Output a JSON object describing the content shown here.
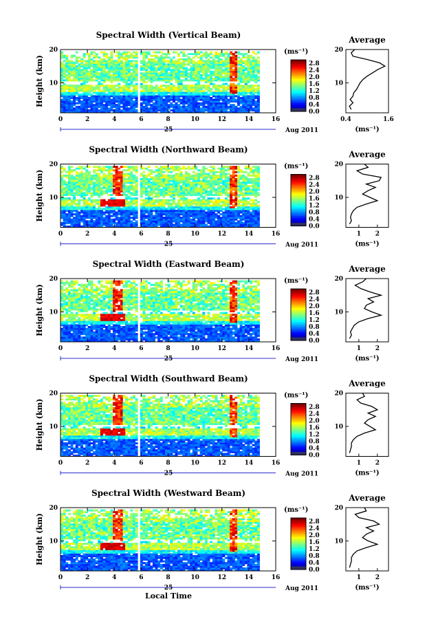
{
  "chart_data": [
    {
      "type": "heatmap",
      "title": "Spectral Width (Vertical Beam)",
      "xlabel": "",
      "ylabel": "Height (km)",
      "xlim": [
        0,
        16
      ],
      "ylim": [
        1,
        20
      ],
      "xticks": [
        "0",
        "2",
        "4",
        "6",
        "8",
        "10",
        "12",
        "14",
        "16"
      ],
      "yticks": [
        "10",
        "20"
      ],
      "date_day": "25",
      "date_month": "Aug 2011",
      "colorbar": {
        "unit": "(ms⁻¹)",
        "ticks": [
          "0.0",
          "0.4",
          "0.8",
          "1.2",
          "1.6",
          "2.0",
          "2.4",
          "2.8"
        ],
        "range": [
          0.0,
          3.0
        ]
      },
      "data_gap_hours": [
        5.7,
        6.0
      ],
      "average_profile": {
        "title": "Average",
        "xlabel": "(ms⁻¹)",
        "xticks": [
          "0.4",
          "1.6"
        ],
        "xlim": [
          0.4,
          1.6
        ],
        "height_km": [
          2,
          3,
          4,
          5,
          6,
          7,
          8,
          9,
          10,
          11,
          12,
          13,
          14,
          15,
          16,
          17,
          18,
          19,
          20
        ],
        "width_ms": [
          0.55,
          0.5,
          0.6,
          0.52,
          0.6,
          0.62,
          0.7,
          0.75,
          0.8,
          0.88,
          1.0,
          1.15,
          1.3,
          1.5,
          1.35,
          1.0,
          0.6,
          0.55,
          0.65
        ]
      }
    },
    {
      "type": "heatmap",
      "title": "Spectral Width (Northward Beam)",
      "xlabel": "",
      "ylabel": "Height (km)",
      "xlim": [
        0,
        16
      ],
      "ylim": [
        1,
        20
      ],
      "xticks": [
        "0",
        "2",
        "4",
        "6",
        "8",
        "10",
        "12",
        "14",
        "16"
      ],
      "yticks": [
        "10",
        "20"
      ],
      "date_day": "25",
      "date_month": "Aug 2011",
      "colorbar": {
        "unit": "(ms⁻¹)",
        "ticks": [
          "0.0",
          "0.4",
          "0.8",
          "1.2",
          "1.6",
          "2.0",
          "2.4",
          "2.8"
        ],
        "range": [
          0.0,
          3.0
        ]
      },
      "data_gap_hours": [
        5.7,
        6.0
      ],
      "average_profile": {
        "title": "Average",
        "xlabel": "(ms⁻¹)",
        "xticks": [
          "1",
          "2"
        ],
        "xlim": [
          0.3,
          2.6
        ],
        "height_km": [
          2,
          3,
          4,
          5,
          6,
          7,
          8,
          9,
          10,
          11,
          12,
          13,
          14,
          15,
          16,
          17,
          18,
          19,
          20
        ],
        "width_ms": [
          0.5,
          0.6,
          0.55,
          0.6,
          0.7,
          0.9,
          1.4,
          2.0,
          1.6,
          1.2,
          1.5,
          1.9,
          1.4,
          2.1,
          2.2,
          1.2,
          0.9,
          1.5,
          1.3
        ]
      }
    },
    {
      "type": "heatmap",
      "title": "Spectral Width (Eastward Beam)",
      "xlabel": "",
      "ylabel": "Height (km)",
      "xlim": [
        0,
        16
      ],
      "ylim": [
        1,
        20
      ],
      "xticks": [
        "0",
        "2",
        "4",
        "6",
        "8",
        "10",
        "12",
        "14",
        "16"
      ],
      "yticks": [
        "10",
        "20"
      ],
      "date_day": "25",
      "date_month": "Aug 2011",
      "colorbar": {
        "unit": "(ms⁻¹)",
        "ticks": [
          "0.0",
          "0.4",
          "0.8",
          "1.2",
          "1.6",
          "2.0",
          "2.4",
          "2.8"
        ],
        "range": [
          0.0,
          3.0
        ]
      },
      "data_gap_hours": [
        5.7,
        6.0
      ],
      "average_profile": {
        "title": "Average",
        "xlabel": "(ms⁻¹)",
        "xticks": [
          "1",
          "2"
        ],
        "xlim": [
          0.3,
          2.6
        ],
        "height_km": [
          2,
          3,
          4,
          5,
          6,
          7,
          8,
          9,
          10,
          11,
          12,
          13,
          14,
          15,
          16,
          17,
          18,
          19,
          20
        ],
        "width_ms": [
          0.5,
          0.6,
          0.55,
          0.65,
          0.75,
          1.0,
          1.5,
          2.2,
          1.7,
          1.3,
          1.4,
          1.8,
          1.5,
          2.2,
          1.6,
          1.1,
          0.8,
          1.2,
          1.4
        ]
      }
    },
    {
      "type": "heatmap",
      "title": "Spectral Width (Southward Beam)",
      "xlabel": "",
      "ylabel": "Height (km)",
      "xlim": [
        0,
        16
      ],
      "ylim": [
        1,
        20
      ],
      "xticks": [
        "0",
        "2",
        "4",
        "6",
        "8",
        "10",
        "12",
        "14",
        "16"
      ],
      "yticks": [
        "10",
        "20"
      ],
      "date_day": "25",
      "date_month": "Aug 2011",
      "colorbar": {
        "unit": "(ms⁻¹)",
        "ticks": [
          "0.0",
          "0.4",
          "0.8",
          "1.2",
          "1.6",
          "2.0",
          "2.4",
          "2.8"
        ],
        "range": [
          0.0,
          3.0
        ]
      },
      "data_gap_hours": [
        5.7,
        6.0
      ],
      "average_profile": {
        "title": "Average",
        "xlabel": "(ms⁻¹)",
        "xticks": [
          "1",
          "2"
        ],
        "xlim": [
          0.3,
          2.6
        ],
        "height_km": [
          2,
          3,
          4,
          5,
          6,
          7,
          8,
          9,
          10,
          11,
          12,
          13,
          14,
          15,
          16,
          17,
          18,
          19,
          20
        ],
        "width_ms": [
          0.5,
          0.55,
          0.6,
          0.6,
          0.7,
          0.9,
          1.3,
          1.9,
          1.6,
          1.3,
          1.5,
          1.9,
          1.5,
          2.0,
          1.7,
          1.1,
          0.9,
          1.3,
          1.2
        ]
      }
    },
    {
      "type": "heatmap",
      "title": "Spectral Width (Westward Beam)",
      "xlabel": "Local Time",
      "ylabel": "Height (km)",
      "xlim": [
        0,
        16
      ],
      "ylim": [
        1,
        20
      ],
      "xticks": [
        "0",
        "2",
        "4",
        "6",
        "8",
        "10",
        "12",
        "14",
        "16"
      ],
      "yticks": [
        "10",
        "20"
      ],
      "date_day": "25",
      "date_month": "Aug 2011",
      "colorbar": {
        "unit": "(ms⁻¹)",
        "ticks": [
          "0.0",
          "0.4",
          "0.8",
          "1.2",
          "1.6",
          "2.0",
          "2.4",
          "2.8"
        ],
        "range": [
          0.0,
          3.0
        ]
      },
      "data_gap_hours": [
        5.7,
        6.0
      ],
      "average_profile": {
        "title": "Average",
        "xlabel": "(ms⁻¹)",
        "xticks": [
          "1",
          "2"
        ],
        "xlim": [
          0.3,
          2.6
        ],
        "height_km": [
          2,
          3,
          4,
          5,
          6,
          7,
          8,
          9,
          10,
          11,
          12,
          13,
          14,
          15,
          16,
          17,
          18,
          19,
          20
        ],
        "width_ms": [
          0.5,
          0.55,
          0.6,
          0.6,
          0.7,
          0.9,
          1.4,
          2.0,
          1.5,
          1.2,
          1.4,
          1.8,
          1.4,
          2.1,
          1.8,
          1.0,
          0.8,
          1.4,
          1.3
        ]
      }
    }
  ]
}
